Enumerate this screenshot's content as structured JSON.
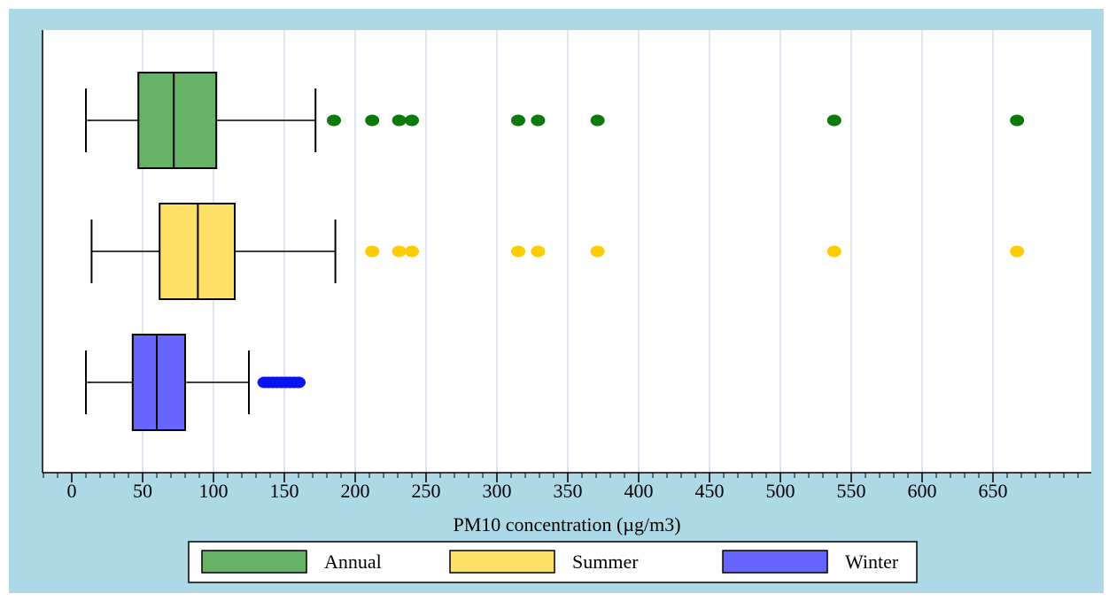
{
  "chart_data": {
    "type": "boxplot",
    "orientation": "horizontal",
    "title": "",
    "xlabel": "PM10 concentration (µg/m3)",
    "ylabel": "",
    "xlim": [
      -20,
      720
    ],
    "x_ticks": [
      0,
      50,
      100,
      150,
      200,
      250,
      300,
      350,
      400,
      450,
      500,
      550,
      600,
      650
    ],
    "x_tick_labels": [
      "0",
      "50",
      "100",
      "150",
      "200",
      "250",
      "300",
      "350",
      "400",
      "450",
      "500",
      "550",
      "600",
      "650"
    ],
    "minor_tick_step": 10,
    "grid": "vertical",
    "legend_position": "bottom",
    "series": [
      {
        "name": "Annual",
        "color": "#66b266",
        "outlier_color": "#0b7a0b",
        "whisker_low": 10,
        "q1": 47,
        "median": 72,
        "q3": 102,
        "whisker_high": 172,
        "outliers": [
          185,
          212,
          231,
          240,
          315,
          329,
          371,
          538,
          667
        ]
      },
      {
        "name": "Summer",
        "color": "#ffe066",
        "outlier_color": "#ffcc00",
        "whisker_low": 14,
        "q1": 62,
        "median": 89,
        "q3": 115,
        "whisker_high": 186,
        "outliers": [
          212,
          231,
          240,
          315,
          329,
          371,
          538,
          667
        ]
      },
      {
        "name": "Winter",
        "color": "#6666ff",
        "outlier_color": "#0a14f0",
        "whisker_low": 10,
        "q1": 43,
        "median": 60,
        "q3": 80,
        "whisker_high": 125,
        "outliers": [
          136,
          139,
          142,
          145,
          148,
          151,
          154,
          157,
          160
        ]
      }
    ]
  },
  "colors": {
    "outer_background": "#add8e6",
    "plot_background": "#ffffff",
    "grid": "#dde6ee",
    "axis": "#000000"
  }
}
